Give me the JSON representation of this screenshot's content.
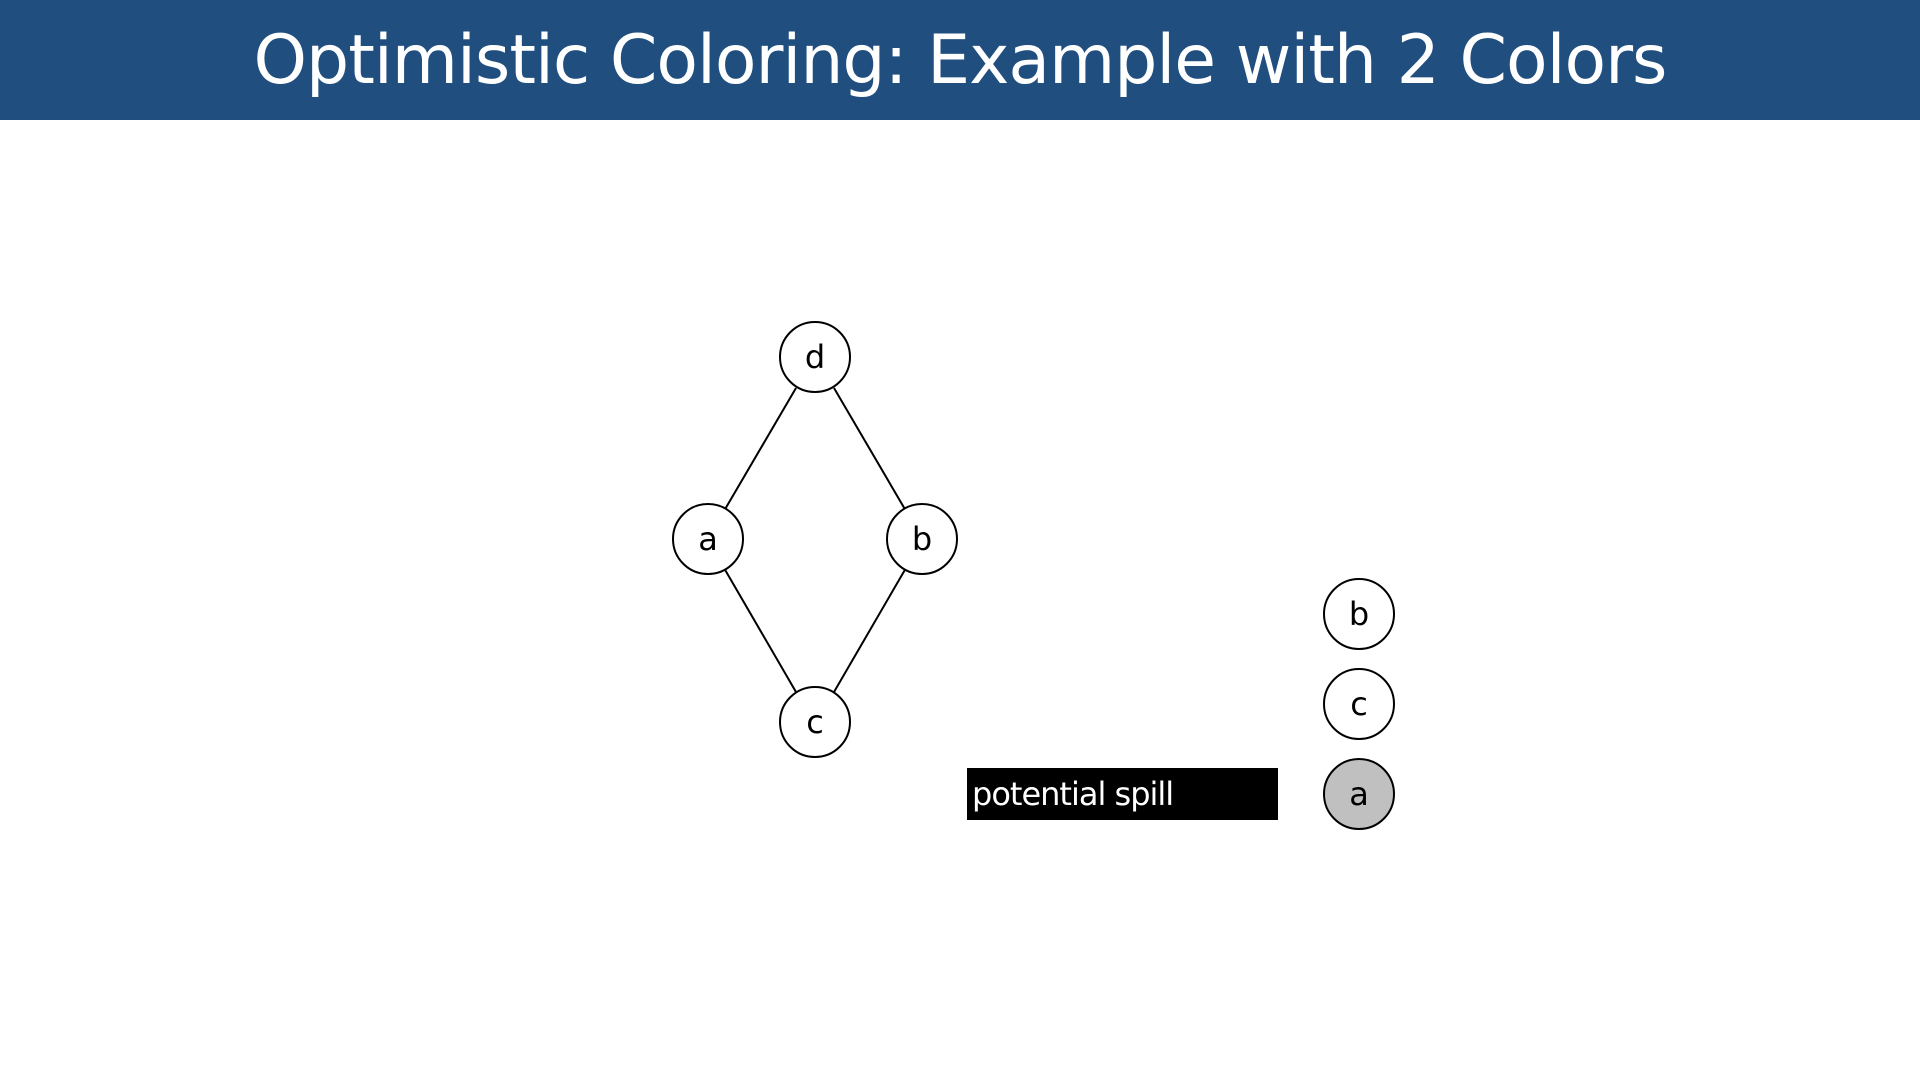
{
  "slide": {
    "title": "Optimistic Coloring: Example with 2 Colors"
  },
  "graph": {
    "nodes": {
      "d": "d",
      "a": "a",
      "b": "b",
      "c": "c"
    },
    "edges": [
      [
        "d",
        "a"
      ],
      [
        "d",
        "b"
      ],
      [
        "a",
        "c"
      ],
      [
        "b",
        "c"
      ]
    ]
  },
  "stack": {
    "items": [
      {
        "label": "b",
        "spilled": false
      },
      {
        "label": "c",
        "spilled": false
      },
      {
        "label": "a",
        "spilled": true
      }
    ],
    "spill_label": "potential spill"
  },
  "colors": {
    "title_bar": "#1f4e7f",
    "spilled_node": "#c0c0c0",
    "spill_box": "#000000"
  }
}
